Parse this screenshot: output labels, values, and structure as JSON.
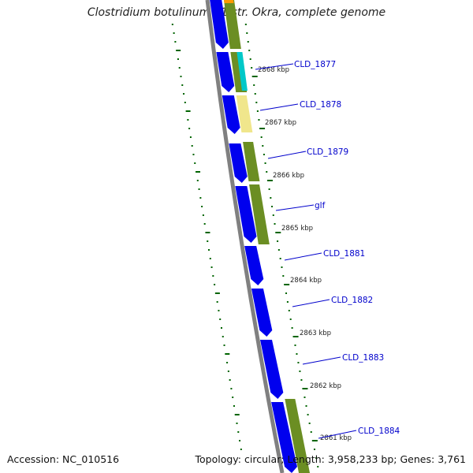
{
  "title": "Clostridium botulinum B1 str. Okra, complete genome",
  "footer": {
    "accession_label": "Accession:",
    "accession": "NC_010516",
    "topology_label": "Topology:",
    "topology": "circular;",
    "length_label": "Length:",
    "length": "3,958,233 bp;",
    "genes_label": "Genes:",
    "genes": "3,761"
  },
  "colors": {
    "cds_forward": "#0000ee",
    "cog_olive": "#6b8e23",
    "cog_cyan": "#00c8c8",
    "cog_yellow": "#f0e68c",
    "cog_orange": "#ff9900",
    "backbone": "#808080",
    "tick_green": "#006400",
    "label_blue": "#0000cc"
  },
  "kbp_ticks": [
    "2868 kbp",
    "2867 kbp",
    "2866 kbp",
    "2865 kbp",
    "2864 kbp",
    "2863 kbp",
    "2862 kbp",
    "2861 kbp"
  ],
  "gene_labels": [
    "CLD_1877",
    "CLD_1878",
    "CLD_1879",
    "glf",
    "CLD_1881",
    "CLD_1882",
    "CLD_1883",
    "CLD_1884"
  ]
}
